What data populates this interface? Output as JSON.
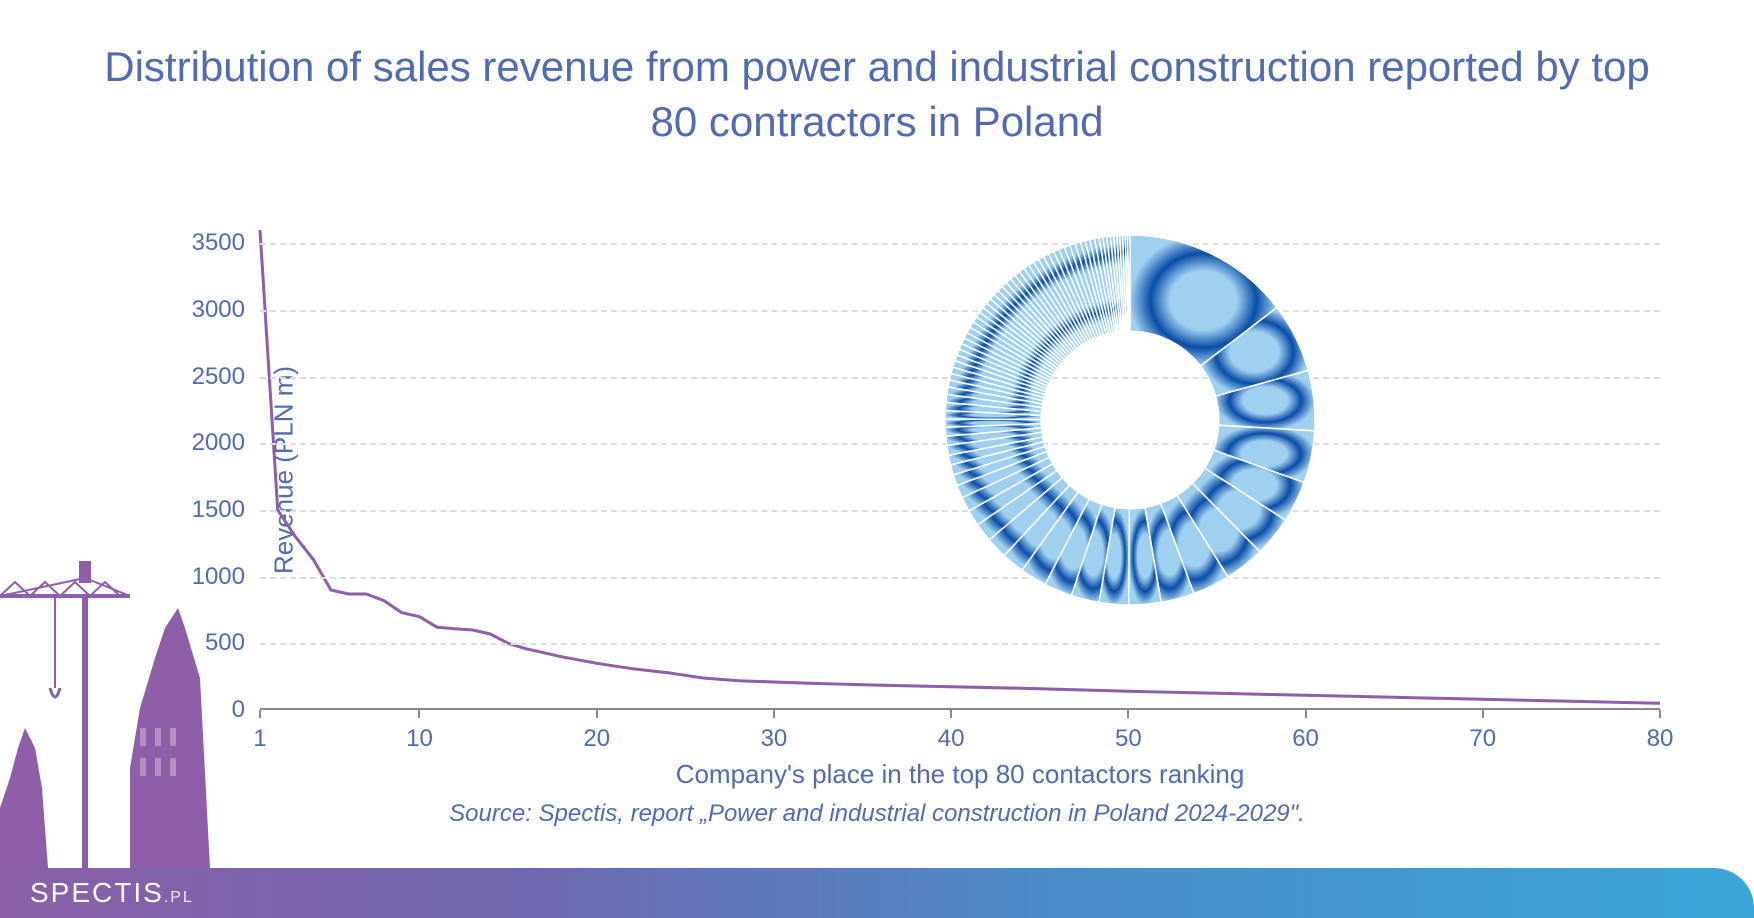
{
  "title": "Distribution of sales revenue from power and industrial construction reported by top 80 contractors in Poland",
  "source": "Source: Spectis, report „Power and industrial construction in Poland 2024-2029\".",
  "logo": {
    "brand": "SPECTIS",
    "suffix": ".PL"
  },
  "chart": {
    "type": "line",
    "ylabel": "Revenue (PLN m)",
    "xlabel": "Company's place in the top 80 contactors ranking",
    "ylim": [
      0,
      3600
    ],
    "yticks": [
      0,
      500,
      1000,
      1500,
      2000,
      2500,
      3000,
      3500
    ],
    "xlim": [
      1,
      80
    ],
    "xticks": [
      1,
      10,
      20,
      30,
      40,
      50,
      60,
      70,
      80
    ],
    "grid_color": "#dcdde3",
    "line_color": "#8e5fa8",
    "line_width": 3,
    "axis_color": "#888888",
    "label_color": "#516AB3",
    "label_fontsize": 26,
    "tick_fontsize": 24,
    "data": [
      {
        "x": 1,
        "y": 3600
      },
      {
        "x": 2,
        "y": 1500
      },
      {
        "x": 3,
        "y": 1300
      },
      {
        "x": 4,
        "y": 1130
      },
      {
        "x": 5,
        "y": 900
      },
      {
        "x": 6,
        "y": 870
      },
      {
        "x": 7,
        "y": 870
      },
      {
        "x": 8,
        "y": 820
      },
      {
        "x": 9,
        "y": 730
      },
      {
        "x": 10,
        "y": 700
      },
      {
        "x": 11,
        "y": 620
      },
      {
        "x": 12,
        "y": 610
      },
      {
        "x": 13,
        "y": 600
      },
      {
        "x": 14,
        "y": 570
      },
      {
        "x": 15,
        "y": 500
      },
      {
        "x": 16,
        "y": 460
      },
      {
        "x": 18,
        "y": 400
      },
      {
        "x": 20,
        "y": 350
      },
      {
        "x": 22,
        "y": 310
      },
      {
        "x": 24,
        "y": 280
      },
      {
        "x": 26,
        "y": 240
      },
      {
        "x": 28,
        "y": 220
      },
      {
        "x": 30,
        "y": 210
      },
      {
        "x": 32,
        "y": 200
      },
      {
        "x": 35,
        "y": 190
      },
      {
        "x": 38,
        "y": 180
      },
      {
        "x": 40,
        "y": 175
      },
      {
        "x": 45,
        "y": 160
      },
      {
        "x": 50,
        "y": 140
      },
      {
        "x": 55,
        "y": 125
      },
      {
        "x": 60,
        "y": 110
      },
      {
        "x": 65,
        "y": 95
      },
      {
        "x": 70,
        "y": 80
      },
      {
        "x": 75,
        "y": 65
      },
      {
        "x": 80,
        "y": 50
      }
    ]
  },
  "donut": {
    "type": "donut",
    "inner_radius_ratio": 0.48,
    "stroke_color": "#ffffff",
    "stroke_width": 1.5,
    "gradient_id": "donutGrad",
    "slices": [
      12.5,
      5.2,
      4.5,
      3.9,
      3.1,
      3.0,
      3.0,
      2.8,
      2.5,
      2.4,
      2.2,
      2.1,
      2.1,
      2.0,
      1.7,
      1.6,
      1.4,
      1.2,
      1.1,
      0.97,
      0.83,
      0.76,
      0.73,
      0.73,
      0.69,
      0.66,
      0.62,
      0.62,
      0.61,
      0.59,
      0.56,
      0.52,
      0.49,
      0.49,
      0.49,
      0.45,
      0.45,
      0.45,
      0.45,
      0.45,
      0.45,
      0.45,
      0.45,
      0.42,
      0.42,
      0.42,
      0.42,
      0.42,
      0.42,
      0.42,
      0.42,
      0.42,
      0.42,
      0.42,
      0.42,
      0.42,
      0.42,
      0.42,
      0.42,
      0.42,
      0.42,
      0.42,
      0.42,
      0.42,
      0.42,
      0.42,
      0.35,
      0.35,
      0.35,
      0.35,
      0.28,
      0.28,
      0.28,
      0.24,
      0.24,
      0.21,
      0.21,
      0.21,
      0.17,
      0.17
    ]
  },
  "colors": {
    "title": "#516AB3",
    "background": "#ffffff",
    "footer_gradient": [
      "#8a5fa8",
      "#7068b0",
      "#4a8bc9",
      "#3ba7d9"
    ],
    "skyline": "#8e5fa8",
    "donut_light": "#9fd0f0",
    "donut_dark": "#0b4da8"
  }
}
